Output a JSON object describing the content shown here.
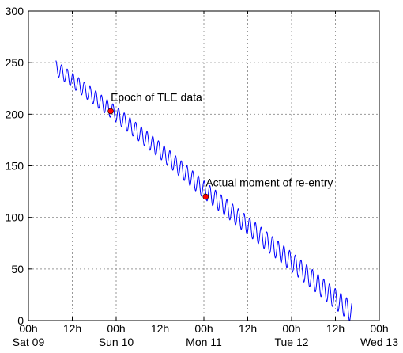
{
  "chart_data": {
    "type": "line",
    "title": "",
    "xlabel": "",
    "ylabel": "",
    "grid": true,
    "x_unit": "hours",
    "xlim": [
      0,
      96
    ],
    "ylim": [
      0,
      300
    ],
    "x_ticks": [
      {
        "value": 0,
        "label": "00h",
        "sublabel": "Sat 09"
      },
      {
        "value": 12,
        "label": "12h",
        "sublabel": ""
      },
      {
        "value": 24,
        "label": "00h",
        "sublabel": "Sun 10"
      },
      {
        "value": 36,
        "label": "12h",
        "sublabel": ""
      },
      {
        "value": 48,
        "label": "00h",
        "sublabel": "Mon 11"
      },
      {
        "value": 60,
        "label": "12h",
        "sublabel": ""
      },
      {
        "value": 72,
        "label": "00h",
        "sublabel": "Tue 12"
      },
      {
        "value": 84,
        "label": "12h",
        "sublabel": ""
      },
      {
        "value": 96,
        "label": "00h",
        "sublabel": "Wed 13"
      }
    ],
    "y_ticks": [
      {
        "value": 0,
        "label": "0"
      },
      {
        "value": 50,
        "label": "50"
      },
      {
        "value": 100,
        "label": "100"
      },
      {
        "value": 150,
        "label": "150"
      },
      {
        "value": 200,
        "label": "200"
      },
      {
        "value": 250,
        "label": "250"
      },
      {
        "value": 300,
        "label": "300"
      }
    ],
    "series": [
      {
        "color": "#0000ff",
        "x_start": 7.5,
        "x_end": 88.5,
        "trend_x": [
          7.5,
          12,
          24,
          36,
          48,
          60,
          72,
          84,
          88.5
        ],
        "trend_y": [
          245,
          233,
          200,
          165,
          127,
          92,
          57,
          21,
          8
        ],
        "oscillation_period": 1.56,
        "oscillation_amplitude": [
          7,
          10
        ]
      }
    ],
    "markers": [
      {
        "x": 22.5,
        "y": 203,
        "color": "#ff0000",
        "label": "Epoch of TLE data"
      },
      {
        "x": 48.5,
        "y": 120,
        "color": "#ff0000",
        "label": "Actual moment of re-entry"
      }
    ]
  }
}
